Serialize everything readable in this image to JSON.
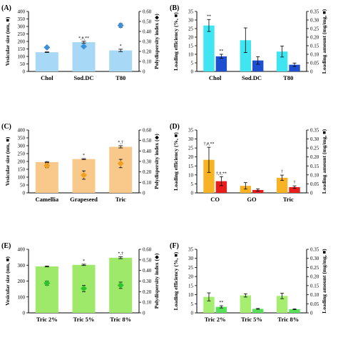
{
  "chart_data": [
    {
      "panel": "(A)",
      "type": "bar",
      "categories": [
        "Chol",
        "Sod.DC",
        "T80"
      ],
      "ylabel_left": "Vesicular size (nm, ■)",
      "ylabel_right": "Polydispersity index (◆)",
      "ylim_left": [
        0,
        400
      ],
      "yticks_left": [
        "0",
        "50",
        "100",
        "150",
        "200",
        "250",
        "300",
        "350",
        "400"
      ],
      "ylim_right": [
        0,
        0.6
      ],
      "yticks_right": [
        "0",
        "0.10",
        "0.20",
        "0.30",
        "0.40",
        "0.50",
        "0.60"
      ],
      "bar_color": "#a7d8f5",
      "marker_color": "#3d8fd6",
      "series": [
        {
          "values": [
            128,
            195,
            140
          ],
          "errors": [
            2,
            6,
            8
          ],
          "annotations": [
            "",
            "*,#,**",
            "*"
          ]
        },
        {
          "values": [
            0.24,
            0.25,
            0.46
          ],
          "errors": [
            0.01,
            0.01,
            0.02
          ],
          "annotations": [
            "",
            "",
            ""
          ]
        }
      ]
    },
    {
      "panel": "(B)",
      "type": "bar",
      "categories": [
        "Chol",
        "Sod.DC",
        "T80"
      ],
      "ylabel_left": "Loading efficiency (%, ■)",
      "ylabel_right": "Loading amount (mg/mg, ■)",
      "ylim_left": [
        0,
        35
      ],
      "yticks_left": [
        "0",
        "5",
        "10",
        "15",
        "20",
        "25",
        "30",
        "35"
      ],
      "ylim_right": [
        0,
        0.35
      ],
      "yticks_right": [
        "0",
        "0.05",
        "0.10",
        "0.15",
        "0.20",
        "0.25",
        "0.30",
        "0.35"
      ],
      "colors": [
        "#3fe6f2",
        "#1e4fd0"
      ],
      "series": [
        {
          "values": [
            26.8,
            18.2,
            11.6
          ],
          "errors": [
            3.5,
            7.2,
            3.2
          ],
          "annotations": [
            "**",
            "",
            ""
          ]
        },
        {
          "values": [
            0.088,
            0.064,
            0.039
          ],
          "errors": [
            0.012,
            0.022,
            0.01
          ],
          "annotations": [
            "**",
            "",
            ""
          ]
        }
      ]
    },
    {
      "panel": "(C)",
      "type": "bar",
      "categories": [
        "Camellia",
        "Grapeseed",
        "Tric"
      ],
      "ylabel_left": "Vesicular size (nm, ■)",
      "ylabel_right": "Polydispersity index (◆)",
      "ylim_left": [
        0,
        400
      ],
      "yticks_left": [
        "0",
        "50",
        "100",
        "150",
        "200",
        "250",
        "300",
        "350",
        "400"
      ],
      "ylim_right": [
        0,
        0.6
      ],
      "yticks_right": [
        "0",
        "0.10",
        "0.20",
        "0.30",
        "0.40",
        "0.50",
        "0.60"
      ],
      "bar_color": "#f8c98a",
      "marker_color": "#f0a020",
      "series": [
        {
          "values": [
            196,
            215,
            293
          ],
          "errors": [
            3,
            3,
            7
          ],
          "annotations": [
            "",
            "*",
            "*,†"
          ]
        },
        {
          "values": [
            0.26,
            0.17,
            0.28
          ],
          "errors": [
            0.02,
            0.04,
            0.04
          ],
          "annotations": [
            "",
            "",
            ""
          ]
        }
      ]
    },
    {
      "panel": "(D)",
      "type": "bar",
      "categories": [
        "CO",
        "GO",
        "Tric"
      ],
      "ylabel_left": "Loading efficiency (%, ■)",
      "ylabel_right": "Loading amount (mg/mg, ■)",
      "ylim_left": [
        0,
        35
      ],
      "yticks_left": [
        "0",
        "5",
        "10",
        "15",
        "20",
        "25",
        "30",
        "35"
      ],
      "ylim_right": [
        0,
        0.35
      ],
      "yticks_right": [
        "0",
        "0.05",
        "0.10",
        "0.15",
        "0.20",
        "0.25",
        "0.30",
        "0.35"
      ],
      "colors": [
        "#f7b324",
        "#ea1d1d"
      ],
      "series": [
        {
          "values": [
            18.4,
            3.9,
            8.4
          ],
          "errors": [
            7.0,
            1.8,
            1.5
          ],
          "annotations": [
            "†,#,**",
            "",
            "†"
          ]
        },
        {
          "values": [
            0.065,
            0.016,
            0.032
          ],
          "errors": [
            0.025,
            0.006,
            0.007
          ],
          "annotations": [
            "†,#,**",
            "",
            "†"
          ]
        }
      ]
    },
    {
      "panel": "(E)",
      "type": "bar",
      "categories": [
        "Tric 2%",
        "Tric 5%",
        "Tric 8%"
      ],
      "ylabel_left": "Vesicular size (nm, ■)",
      "ylabel_right": "Polydispersity index (◆)",
      "ylim_left": [
        0,
        400
      ],
      "yticks_left": [
        "0",
        "100",
        "200",
        "300",
        "400"
      ],
      "ylim_right": [
        0,
        0.6
      ],
      "yticks_right": [
        "0",
        "0.10",
        "0.20",
        "0.30",
        "0.40",
        "0.50",
        "0.60"
      ],
      "bar_color": "#9ee86a",
      "marker_color": "#2fc22f",
      "series": [
        {
          "values": [
            292,
            302,
            347
          ],
          "errors": [
            3,
            4,
            6
          ],
          "annotations": [
            "",
            "*",
            "*,†"
          ]
        },
        {
          "values": [
            0.28,
            0.23,
            0.26
          ],
          "errors": [
            0.02,
            0.03,
            0.03
          ],
          "annotations": [
            "",
            "",
            ""
          ]
        }
      ]
    },
    {
      "panel": "(F)",
      "type": "bar",
      "categories": [
        "Tric 2%",
        "Tric 5%",
        "Tric 8%"
      ],
      "ylabel_left": "Loading efficiency (%, ■)",
      "ylabel_right": "Loading amount (mg/mg, ■)",
      "ylim_left": [
        0,
        35
      ],
      "yticks_left": [
        "0",
        "5",
        "10",
        "15",
        "20",
        "25",
        "30",
        "35"
      ],
      "ylim_right": [
        0,
        0.35
      ],
      "yticks_right": [
        "0",
        "0.05",
        "0.10",
        "0.15",
        "0.20",
        "0.25",
        "0.30",
        "0.35"
      ],
      "colors": [
        "#a5ee70",
        "#58e058"
      ],
      "series": [
        {
          "values": [
            8.8,
            9.6,
            9.3
          ],
          "errors": [
            2.2,
            0.9,
            1.5
          ],
          "annotations": [
            "",
            "",
            ""
          ]
        },
        {
          "values": [
            0.033,
            0.022,
            0.02
          ],
          "errors": [
            0.006,
            0.002,
            0.002
          ],
          "annotations": [
            "**",
            "",
            ""
          ]
        }
      ]
    }
  ]
}
